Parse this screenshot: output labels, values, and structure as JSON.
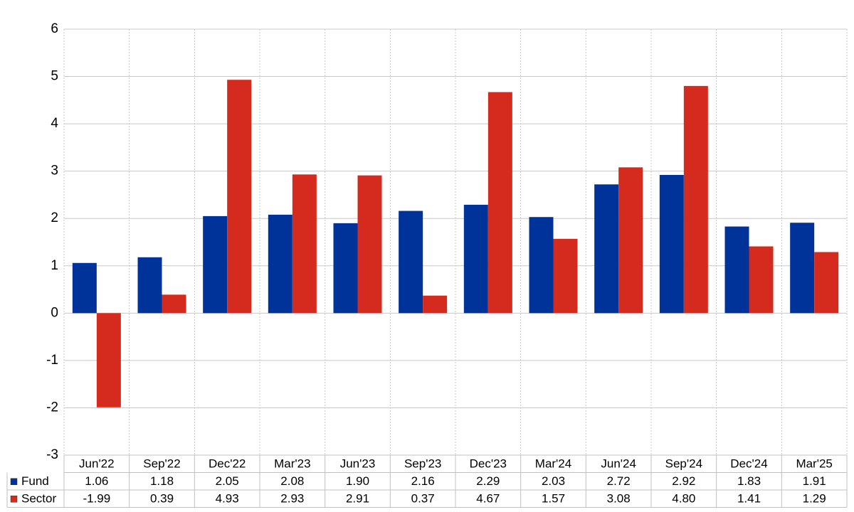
{
  "chart_data": {
    "type": "bar",
    "categories": [
      "Jun'22",
      "Sep'22",
      "Dec'22",
      "Mar'23",
      "Jun'23",
      "Sep'23",
      "Dec'23",
      "Mar'24",
      "Jun'24",
      "Sep'24",
      "Dec'24",
      "Mar'25"
    ],
    "series": [
      {
        "name": "Fund",
        "color": "#003399",
        "values": [
          1.06,
          1.18,
          2.05,
          2.08,
          1.9,
          2.16,
          2.29,
          2.03,
          2.72,
          2.92,
          1.83,
          1.91
        ],
        "value_labels": [
          "1.06",
          "1.18",
          "2.05",
          "2.08",
          "1.90",
          "2.16",
          "2.29",
          "2.03",
          "2.72",
          "2.92",
          "1.83",
          "1.91"
        ]
      },
      {
        "name": "Sector",
        "color": "#d52b1e",
        "values": [
          -1.99,
          0.39,
          4.93,
          2.93,
          2.91,
          0.37,
          4.67,
          1.57,
          3.08,
          4.8,
          1.41,
          1.29
        ],
        "value_labels": [
          "-1.99",
          "0.39",
          "4.93",
          "2.93",
          "2.91",
          "0.37",
          "4.67",
          "1.57",
          "3.08",
          "4.80",
          "1.41",
          "1.29"
        ]
      }
    ],
    "ylim": [
      -3,
      6
    ],
    "yticks": [
      -3,
      -2,
      -1,
      0,
      1,
      2,
      3,
      4,
      5,
      6
    ],
    "grid": true,
    "negative_label_color": "#ff0000"
  }
}
